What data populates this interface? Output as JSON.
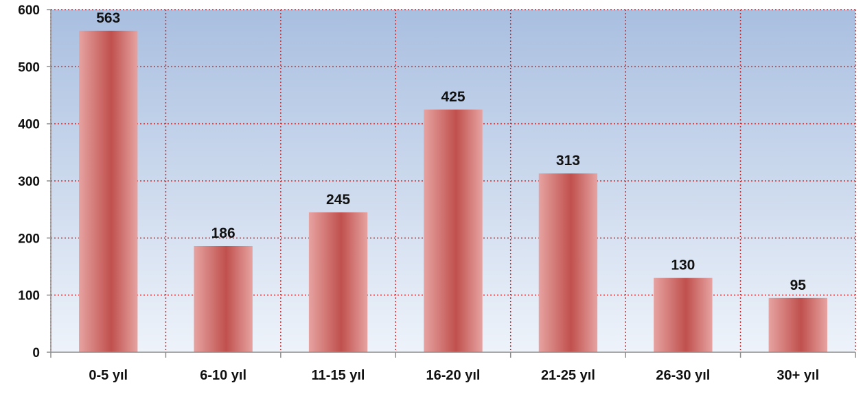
{
  "chart_data": {
    "type": "bar",
    "title": "",
    "xlabel": "",
    "ylabel": "",
    "categories": [
      "0-5 yıl",
      "6-10 yıl",
      "11-15 yıl",
      "16-20 yıl",
      "21-25 yıl",
      "26-30 yıl",
      "30+ yıl"
    ],
    "values": [
      563,
      186,
      245,
      425,
      313,
      130,
      95
    ],
    "data_labels": [
      "563",
      "186",
      "245",
      "425",
      "313",
      "130",
      "95"
    ],
    "ylim": [
      0,
      600
    ],
    "yticks": [
      0,
      100,
      200,
      300,
      400,
      500,
      600
    ],
    "ytick_labels": [
      "0",
      "100",
      "200",
      "300",
      "400",
      "500",
      "600"
    ],
    "grid": true,
    "legend": "none",
    "colors": {
      "bar_center": "#c0504d",
      "bar_edge": "#e6a3a1",
      "grid": "#cc2a2a",
      "plot_bg_top": "#a9bfe0",
      "plot_bg_bottom": "#eef3fa",
      "axis": "#8c8c8c"
    }
  }
}
